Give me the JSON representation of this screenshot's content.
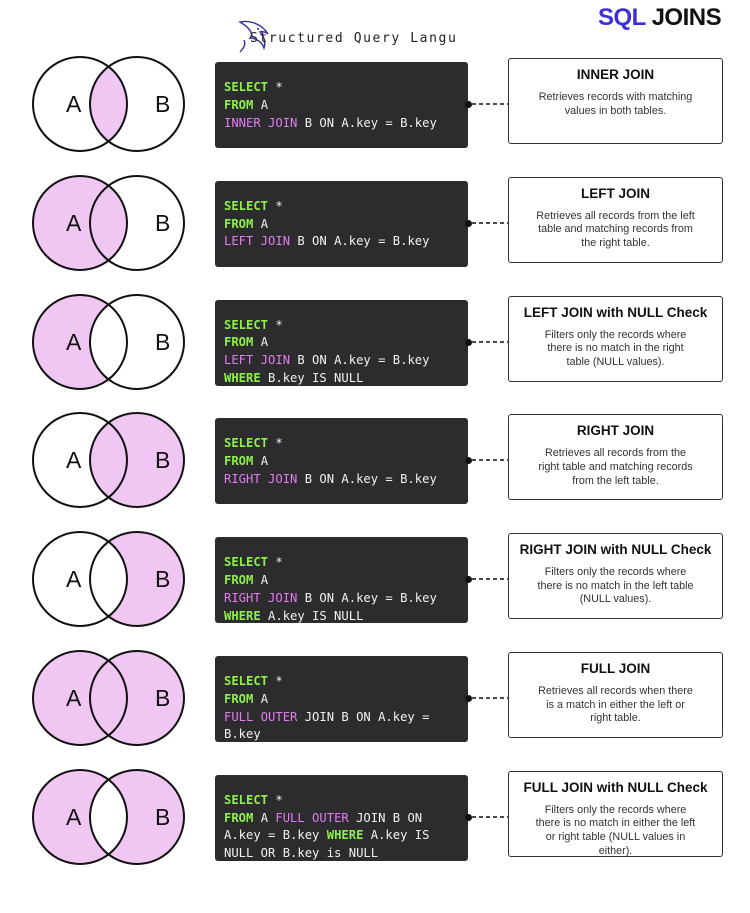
{
  "header": {
    "tagline": "Structured Query Langu",
    "title_part1": "SQL",
    "title_part2": "JOINS"
  },
  "colors": {
    "fill": "#f0c6f3",
    "stroke": "#111111",
    "accent": "#3b2fd6",
    "keyword_green": "#8ef04a",
    "keyword_pink": "#e57bf0",
    "code_bg": "#2c2c2e"
  },
  "rows": [
    {
      "label_a": "A",
      "label_b": "B",
      "fill": "intersection",
      "code": [
        [
          {
            "t": "SELECT",
            "c": "g"
          },
          {
            "t": " *",
            "c": ""
          }
        ],
        [
          {
            "t": "FROM",
            "c": "g"
          },
          {
            "t": " A",
            "c": ""
          }
        ],
        [
          {
            "t": "INNER JOIN",
            "c": "p"
          },
          {
            "t": " B ON A.key = B.key",
            "c": ""
          }
        ]
      ],
      "title": "INNER JOIN",
      "description": "Retrieves records with matching values in both tables."
    },
    {
      "label_a": "A",
      "label_b": "B",
      "fill": "left",
      "code": [
        [
          {
            "t": "SELECT",
            "c": "g"
          },
          {
            "t": " *",
            "c": ""
          }
        ],
        [
          {
            "t": "FROM",
            "c": "g"
          },
          {
            "t": " A",
            "c": ""
          }
        ],
        [
          {
            "t": "LEFT JOIN",
            "c": "p"
          },
          {
            "t": " B ON A.key = B.key",
            "c": ""
          }
        ]
      ],
      "title": "LEFT JOIN",
      "description": "Retrieves all records from the left table and matching records from the right table."
    },
    {
      "label_a": "A",
      "label_b": "B",
      "fill": "left-only",
      "code": [
        [
          {
            "t": "SELECT",
            "c": "g"
          },
          {
            "t": " *",
            "c": ""
          }
        ],
        [
          {
            "t": "FROM",
            "c": "g"
          },
          {
            "t": " A",
            "c": ""
          }
        ],
        [
          {
            "t": "LEFT JOIN",
            "c": "p"
          },
          {
            "t": " B ON A.key = B.key",
            "c": ""
          }
        ],
        [
          {
            "t": "WHERE",
            "c": "g"
          },
          {
            "t": " B.key IS NULL",
            "c": ""
          }
        ]
      ],
      "title": "LEFT JOIN with NULL Check",
      "description": "Filters only the records where there is no match in the right table (NULL values)."
    },
    {
      "label_a": "A",
      "label_b": "B",
      "fill": "right",
      "code": [
        [
          {
            "t": "SELECT",
            "c": "g"
          },
          {
            "t": " *",
            "c": ""
          }
        ],
        [
          {
            "t": "FROM",
            "c": "g"
          },
          {
            "t": " A",
            "c": ""
          }
        ],
        [
          {
            "t": "RIGHT JOIN",
            "c": "p"
          },
          {
            "t": " B ON A.key = B.key",
            "c": ""
          }
        ]
      ],
      "title": "RIGHT JOIN",
      "description": "Retrieves all records from the right table and matching records from the left table."
    },
    {
      "label_a": "A",
      "label_b": "B",
      "fill": "right-only",
      "code": [
        [
          {
            "t": "SELECT",
            "c": "g"
          },
          {
            "t": " *",
            "c": ""
          }
        ],
        [
          {
            "t": "FROM",
            "c": "g"
          },
          {
            "t": " A",
            "c": ""
          }
        ],
        [
          {
            "t": "RIGHT JOIN",
            "c": "p"
          },
          {
            "t": " B ON A.key = B.key",
            "c": ""
          }
        ],
        [
          {
            "t": "WHERE",
            "c": "g"
          },
          {
            "t": " A.key IS NULL",
            "c": ""
          }
        ]
      ],
      "title": "RIGHT JOIN with NULL Check",
      "description": "Filters only the records where there is no match in the left table (NULL values)."
    },
    {
      "label_a": "A",
      "label_b": "B",
      "fill": "full",
      "code": [
        [
          {
            "t": "SELECT",
            "c": "g"
          },
          {
            "t": " *",
            "c": ""
          }
        ],
        [
          {
            "t": "FROM",
            "c": "g"
          },
          {
            "t": " A",
            "c": ""
          }
        ],
        [
          {
            "t": "FULL OUTER",
            "c": "p"
          },
          {
            "t": " JOIN B ON A.key =",
            "c": ""
          }
        ],
        [
          {
            "t": "B.key",
            "c": ""
          }
        ]
      ],
      "title": "FULL JOIN",
      "description": "Retrieves all records when there is a match in either the left or right table."
    },
    {
      "label_a": "A",
      "label_b": "B",
      "fill": "full-only",
      "code": [
        [
          {
            "t": "SELECT",
            "c": "g"
          },
          {
            "t": " *",
            "c": ""
          }
        ],
        [
          {
            "t": "FROM",
            "c": "g"
          },
          {
            "t": " A ",
            "c": ""
          },
          {
            "t": "FULL OUTER",
            "c": "p"
          },
          {
            "t": " JOIN B ON",
            "c": ""
          }
        ],
        [
          {
            "t": "A.key = B.key ",
            "c": ""
          },
          {
            "t": "WHERE",
            "c": "g"
          },
          {
            "t": " A.key IS",
            "c": ""
          }
        ],
        [
          {
            "t": "NULL OR B.key is NULL",
            "c": ""
          }
        ]
      ],
      "title": "FULL JOIN with NULL Check",
      "description": "Filters only the records where there is no match in either the left or right table (NULL values in either)."
    }
  ]
}
